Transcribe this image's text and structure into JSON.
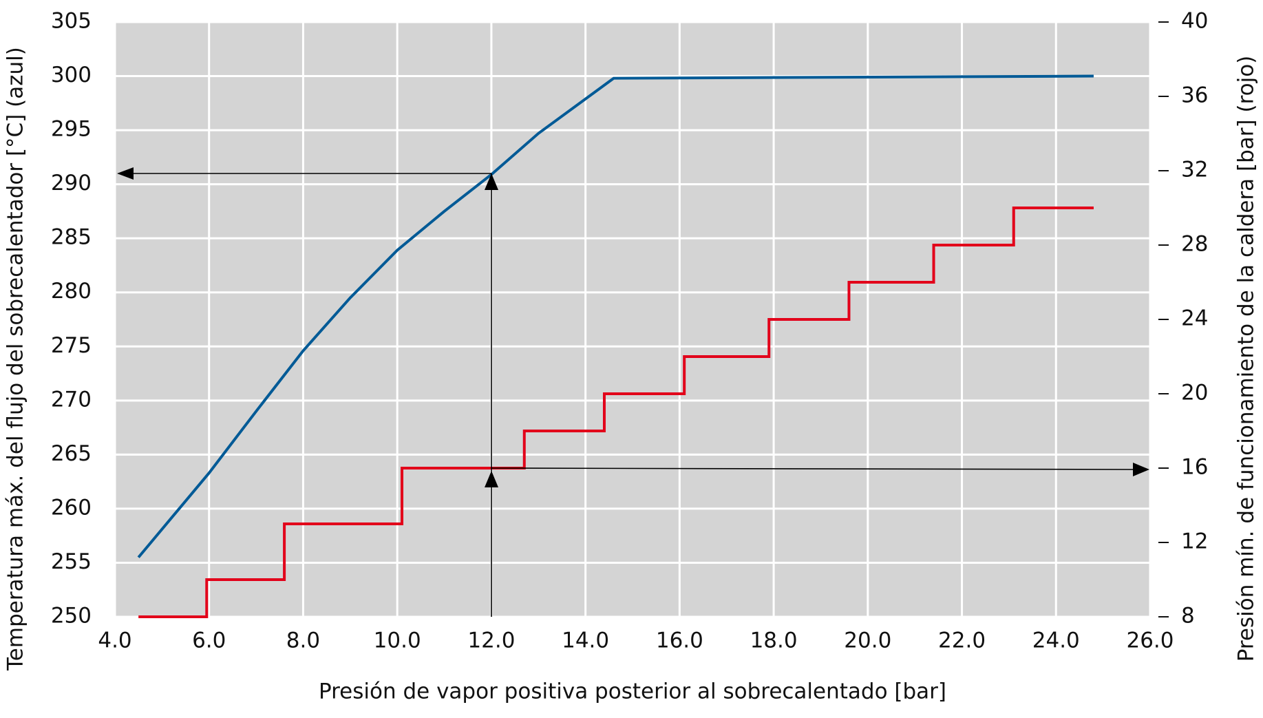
{
  "chart_data": {
    "type": "line",
    "x_label": "Presión de vapor positiva posterior al sobrecalentado [bar]",
    "y_label": "Temperatura máx. del flujo del sobrecalentador [°C] (azul)",
    "y2_label": "Presión mín. de funcionamiento de la caldera [bar] (rojo)",
    "xlim": [
      4,
      26
    ],
    "xticks": [
      {
        "value": 4,
        "label": "4.0"
      },
      {
        "value": 6,
        "label": "6.0"
      },
      {
        "value": 8,
        "label": "8.0"
      },
      {
        "value": 10,
        "label": "10.0"
      },
      {
        "value": 12,
        "label": "12.0"
      },
      {
        "value": 14,
        "label": "14.0"
      },
      {
        "value": 16,
        "label": "16.0"
      },
      {
        "value": 18,
        "label": "18.0"
      },
      {
        "value": 20,
        "label": "20.0"
      },
      {
        "value": 22,
        "label": "22.0"
      },
      {
        "value": 24,
        "label": "24.0"
      },
      {
        "value": 26,
        "label": "26.0"
      }
    ],
    "ylim": [
      250,
      305
    ],
    "yticks": [
      250,
      255,
      260,
      265,
      270,
      275,
      280,
      285,
      290,
      295,
      300,
      305
    ],
    "y2lim": [
      8,
      40
    ],
    "y2ticks": [
      8,
      12,
      16,
      20,
      24,
      28,
      32,
      36,
      40
    ],
    "grid": true,
    "series": [
      {
        "color": "#005a96",
        "x": [
          4.5,
          6,
          7,
          8,
          9,
          10,
          11,
          12,
          13,
          14.6,
          24.8
        ],
        "values": [
          255.5,
          263.3,
          269,
          274.6,
          279.5,
          283.9,
          287.5,
          290.9,
          294.7,
          299.8,
          300
        ]
      },
      {
        "color": "#e2001a",
        "axis": "y2",
        "step": "post",
        "x": [
          4.5,
          5.95,
          7.6,
          10.1,
          12.7,
          14.4,
          16.1,
          17.9,
          19.6,
          21.4,
          23.1,
          24.8
        ],
        "values": [
          8,
          10,
          13,
          16,
          18,
          20,
          22,
          24,
          26,
          28,
          30,
          30
        ]
      }
    ]
  }
}
